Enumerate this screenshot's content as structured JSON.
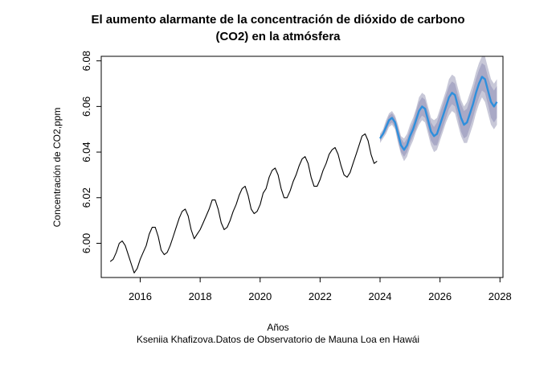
{
  "chart_data": {
    "type": "line",
    "title": "El aumento alarmante de la concentración de dióxido de carbono",
    "title_line2": "(CO2) en la atmósfera",
    "xlabel": "Años",
    "subtitle": "Kseniia Khafizova.Datos de Observatorio de Mauna Loa en Hawái",
    "ylabel": "Concentración de CO2,ppm",
    "xlim": [
      2014.7,
      2028.1
    ],
    "ylim": [
      5.985,
      6.082
    ],
    "xticks": [
      "2016",
      "2018",
      "2020",
      "2022",
      "2024",
      "2026",
      "2028"
    ],
    "yticks": [
      "6.00",
      "6.02",
      "6.04",
      "6.06",
      "6.08"
    ],
    "grid": false,
    "series": [
      {
        "role": "observed",
        "color": "#000000",
        "x": [
          2015.0,
          2015.1,
          2015.2,
          2015.3,
          2015.4,
          2015.5,
          2015.6,
          2015.7,
          2015.8,
          2015.9,
          2016.0,
          2016.1,
          2016.2,
          2016.3,
          2016.4,
          2016.5,
          2016.6,
          2016.7,
          2016.8,
          2016.9,
          2017.0,
          2017.1,
          2017.2,
          2017.3,
          2017.4,
          2017.5,
          2017.6,
          2017.7,
          2017.8,
          2017.9,
          2018.0,
          2018.1,
          2018.2,
          2018.3,
          2018.4,
          2018.5,
          2018.6,
          2018.7,
          2018.8,
          2018.9,
          2019.0,
          2019.1,
          2019.2,
          2019.3,
          2019.4,
          2019.5,
          2019.6,
          2019.7,
          2019.8,
          2019.9,
          2020.0,
          2020.1,
          2020.2,
          2020.3,
          2020.4,
          2020.5,
          2020.6,
          2020.7,
          2020.8,
          2020.9,
          2021.0,
          2021.1,
          2021.2,
          2021.3,
          2021.4,
          2021.5,
          2021.6,
          2021.7,
          2021.8,
          2021.9,
          2022.0,
          2022.1,
          2022.2,
          2022.3,
          2022.4,
          2022.5,
          2022.6,
          2022.7,
          2022.8,
          2022.9,
          2023.0,
          2023.1,
          2023.2,
          2023.3,
          2023.4,
          2023.5,
          2023.6,
          2023.7,
          2023.8,
          2023.9
        ],
        "y": [
          5.992,
          5.993,
          5.996,
          6.0,
          6.001,
          5.999,
          5.995,
          5.991,
          5.987,
          5.989,
          5.993,
          5.996,
          5.999,
          6.004,
          6.007,
          6.007,
          6.003,
          5.997,
          5.995,
          5.996,
          5.999,
          6.003,
          6.007,
          6.011,
          6.014,
          6.015,
          6.012,
          6.006,
          6.002,
          6.004,
          6.006,
          6.009,
          6.012,
          6.015,
          6.019,
          6.019,
          6.015,
          6.009,
          6.006,
          6.007,
          6.01,
          6.014,
          6.017,
          6.021,
          6.024,
          6.025,
          6.021,
          6.015,
          6.013,
          6.014,
          6.017,
          6.022,
          6.024,
          6.029,
          6.032,
          6.033,
          6.03,
          6.024,
          6.02,
          6.02,
          6.023,
          6.027,
          6.03,
          6.034,
          6.037,
          6.038,
          6.035,
          6.029,
          6.025,
          6.025,
          6.028,
          6.032,
          6.035,
          6.039,
          6.041,
          6.042,
          6.039,
          6.034,
          6.03,
          6.029,
          6.031,
          6.035,
          6.039,
          6.043,
          6.047,
          6.048,
          6.045,
          6.039,
          6.035,
          6.036
        ]
      },
      {
        "role": "forecast",
        "color": "#2e8fdc",
        "band_color_outer": "#c8c8d8",
        "band_color_inner": "#a9a9c6",
        "x": [
          2024.0,
          2024.1,
          2024.2,
          2024.3,
          2024.4,
          2024.5,
          2024.6,
          2024.7,
          2024.8,
          2024.9,
          2025.0,
          2025.1,
          2025.2,
          2025.3,
          2025.4,
          2025.5,
          2025.6,
          2025.7,
          2025.8,
          2025.9,
          2026.0,
          2026.1,
          2026.2,
          2026.3,
          2026.4,
          2026.5,
          2026.6,
          2026.7,
          2026.8,
          2026.9,
          2027.0,
          2027.1,
          2027.2,
          2027.3,
          2027.4,
          2027.5,
          2027.6,
          2027.7,
          2027.8,
          2027.9
        ],
        "y": [
          6.046,
          6.048,
          6.051,
          6.054,
          6.055,
          6.053,
          6.048,
          6.043,
          6.041,
          6.043,
          6.047,
          6.05,
          6.054,
          6.058,
          6.06,
          6.059,
          6.054,
          6.049,
          6.047,
          6.048,
          6.052,
          6.056,
          6.06,
          6.064,
          6.066,
          6.065,
          6.06,
          6.055,
          6.052,
          6.053,
          6.057,
          6.061,
          6.066,
          6.07,
          6.073,
          6.072,
          6.067,
          6.062,
          6.06,
          6.062
        ],
        "inner_halfwidth": [
          0.001,
          0.001,
          0.002,
          0.002,
          0.002,
          0.002,
          0.003,
          0.003,
          0.003,
          0.003,
          0.003,
          0.003,
          0.004,
          0.004,
          0.004,
          0.004,
          0.004,
          0.004,
          0.004,
          0.005,
          0.005,
          0.005,
          0.005,
          0.005,
          0.005,
          0.005,
          0.005,
          0.006,
          0.006,
          0.006,
          0.006,
          0.006,
          0.006,
          0.006,
          0.006,
          0.006,
          0.006,
          0.007,
          0.007,
          0.007
        ],
        "outer_halfwidth": [
          0.002,
          0.002,
          0.003,
          0.003,
          0.003,
          0.003,
          0.004,
          0.004,
          0.005,
          0.005,
          0.005,
          0.005,
          0.005,
          0.006,
          0.006,
          0.006,
          0.006,
          0.006,
          0.007,
          0.007,
          0.007,
          0.007,
          0.007,
          0.008,
          0.008,
          0.008,
          0.008,
          0.008,
          0.008,
          0.009,
          0.009,
          0.009,
          0.009,
          0.009,
          0.009,
          0.01,
          0.01,
          0.01,
          0.01,
          0.01
        ]
      }
    ]
  }
}
